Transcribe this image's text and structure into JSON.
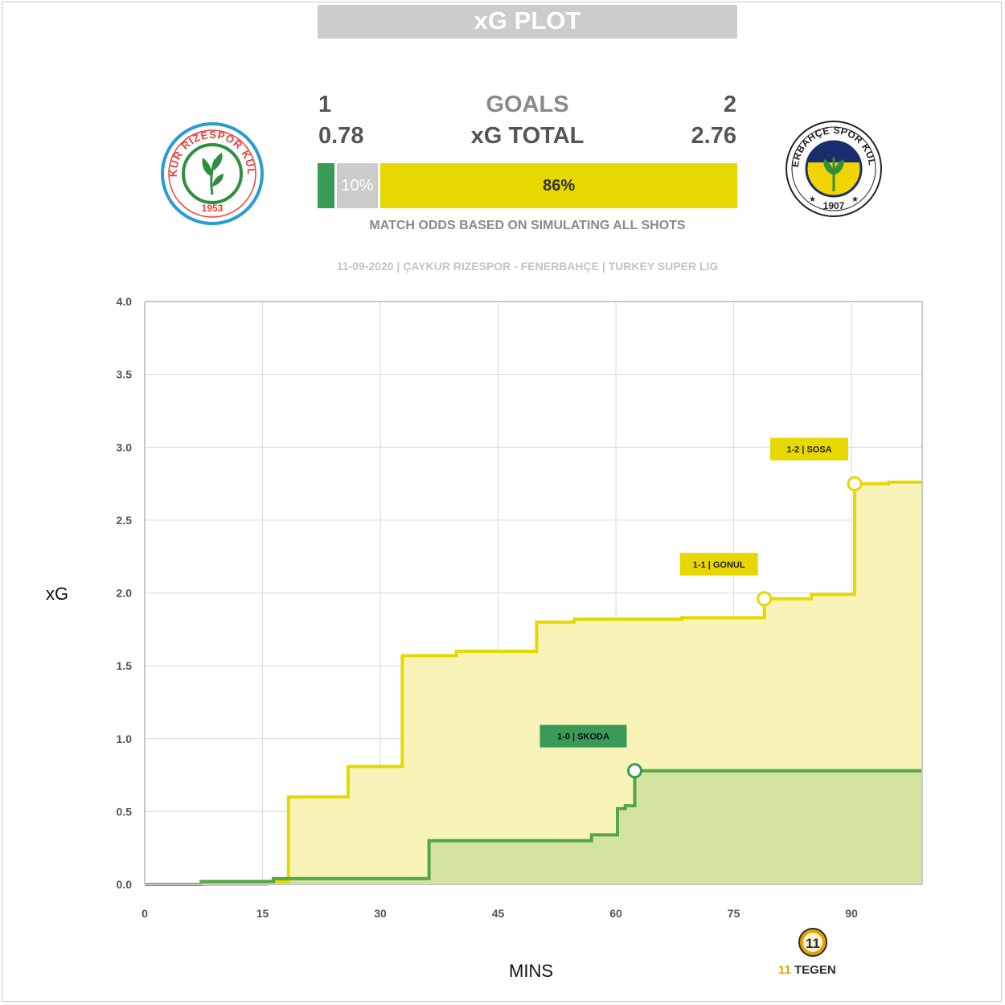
{
  "header": {
    "title": "xG PLOT",
    "home_goals": "1",
    "away_goals": "2",
    "goals_label": "GOALS",
    "home_xg": "0.78",
    "away_xg": "2.76",
    "xg_label": "xG TOTAL",
    "odds_caption": "MATCH ODDS BASED ON SIMULATING ALL SHOTS",
    "match_info": "11-09-2020 | ÇAYKUR RIZESPOR - FENERBAHÇE | TURKEY SUPER LIG"
  },
  "odds": {
    "home_win": 4,
    "draw": 10,
    "away_win": 86,
    "draw_label": "10%",
    "away_label": "86%"
  },
  "colors": {
    "home": "#3a9a57",
    "home_line": "#55a645",
    "away": "#e6d800",
    "away_fill": "#f8f4b8",
    "both_fill": "#d3e4a0",
    "draw": "#cccccc",
    "grid": "#d9d9d9"
  },
  "home_logo": {
    "ring_text": "ÇAYKUR RİZESPOR KULÜBÜ",
    "year": "1953"
  },
  "away_logo": {
    "ring_text": "FENERBAHÇE SPOR KULÜBÜ",
    "year": "1907"
  },
  "brand": {
    "name": "TEGEN",
    "prefix": "11",
    "emblem": "11"
  },
  "chart_data": {
    "type": "line",
    "subtype": "step-area",
    "xlabel": "MINS",
    "ylabel": "xG",
    "xlim": [
      0,
      99
    ],
    "ylim": [
      0,
      4
    ],
    "x_ticks": [
      0,
      15,
      30,
      45,
      60,
      75,
      90
    ],
    "y_ticks": [
      "0.0",
      "0.5",
      "1.0",
      "1.5",
      "2.0",
      "2.5",
      "3.0",
      "3.5",
      "4.0"
    ],
    "grid": true,
    "series": [
      {
        "team": "away",
        "points": [
          [
            0,
            0
          ],
          [
            15.5,
            0.02
          ],
          [
            18.3,
            0.6
          ],
          [
            25.9,
            0.81
          ],
          [
            32.8,
            1.57
          ],
          [
            39.7,
            1.6
          ],
          [
            49.9,
            1.8
          ],
          [
            54.7,
            1.82
          ],
          [
            68.4,
            1.83
          ],
          [
            78.9,
            1.96
          ],
          [
            84.9,
            1.99
          ],
          [
            90.4,
            2.75
          ],
          [
            94.7,
            2.76
          ],
          [
            99,
            2.76
          ]
        ]
      },
      {
        "team": "home",
        "points": [
          [
            0,
            0
          ],
          [
            7.2,
            0.02
          ],
          [
            16.4,
            0.04
          ],
          [
            36.2,
            0.3
          ],
          [
            56.9,
            0.34
          ],
          [
            60.2,
            0.52
          ],
          [
            61.2,
            0.54
          ],
          [
            62.4,
            0.78
          ],
          [
            99,
            0.78
          ]
        ]
      }
    ],
    "annotations": [
      {
        "label": "1-0 | SKODA",
        "x": 62.4,
        "y": 0.78,
        "team": "home"
      },
      {
        "label": "1-1 | GONUL",
        "x": 78.9,
        "y": 1.96,
        "team": "away"
      },
      {
        "label": "1-2 | SOSA",
        "x": 90.4,
        "y": 2.75,
        "team": "away"
      }
    ]
  }
}
